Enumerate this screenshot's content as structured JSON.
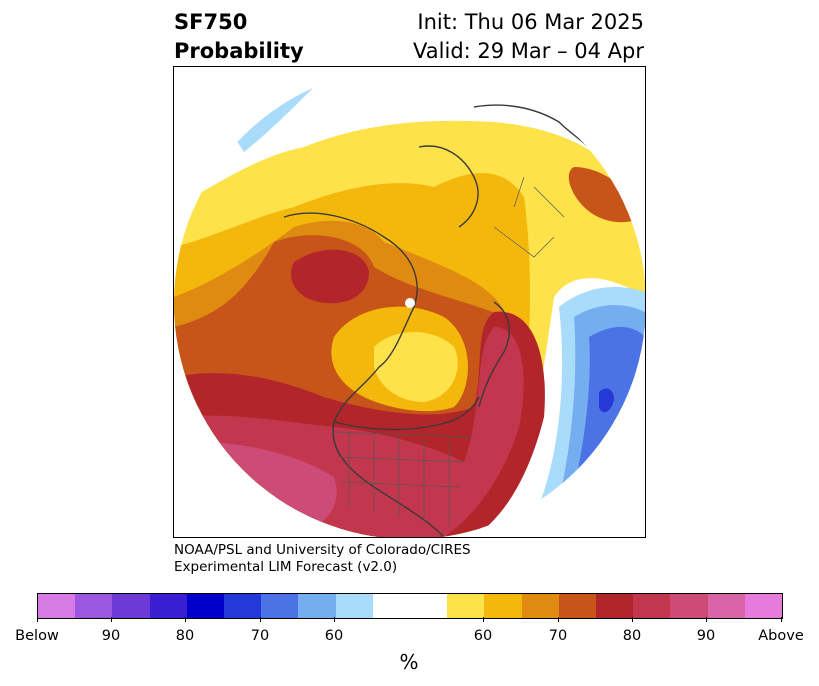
{
  "title": {
    "variable": "SF750",
    "product": "Probability",
    "init": "Init: Thu 06 Mar 2025",
    "valid": "Valid: 29 Mar – 04 Apr"
  },
  "credit": {
    "line1": "NOAA/PSL and University of Colorado/CIRES",
    "line2": "Experimental LIM Forecast (v2.0)"
  },
  "colorbar": {
    "unit": "%",
    "colors": [
      "#d77ae6",
      "#9b57e0",
      "#6d3ad8",
      "#3a1fd2",
      "#0000c8",
      "#2538d8",
      "#4c73e6",
      "#75aef0",
      "#a9dbfb",
      "#ffffff",
      "#ffffff",
      "#fde24a",
      "#f4b80c",
      "#df8a10",
      "#c75419",
      "#b2252a",
      "#c3374e",
      "#cc4c77",
      "#d964a7",
      "#e67bdd"
    ],
    "tick_labels": [
      "Below",
      "90",
      "80",
      "70",
      "60",
      "60",
      "70",
      "80",
      "90",
      "Above"
    ]
  },
  "map_colors": {
    "yellow": "#fde24a",
    "gold": "#f4b80c",
    "orange": "#df8a10",
    "dark_orange": "#c75419",
    "red": "#b2252a",
    "crimson": "#c3374e",
    "rose": "#cc4c77",
    "light_blue": "#a9dbfb",
    "blue": "#75aef0",
    "mid_blue": "#4c73e6",
    "deep_blue": "#2538d8"
  }
}
